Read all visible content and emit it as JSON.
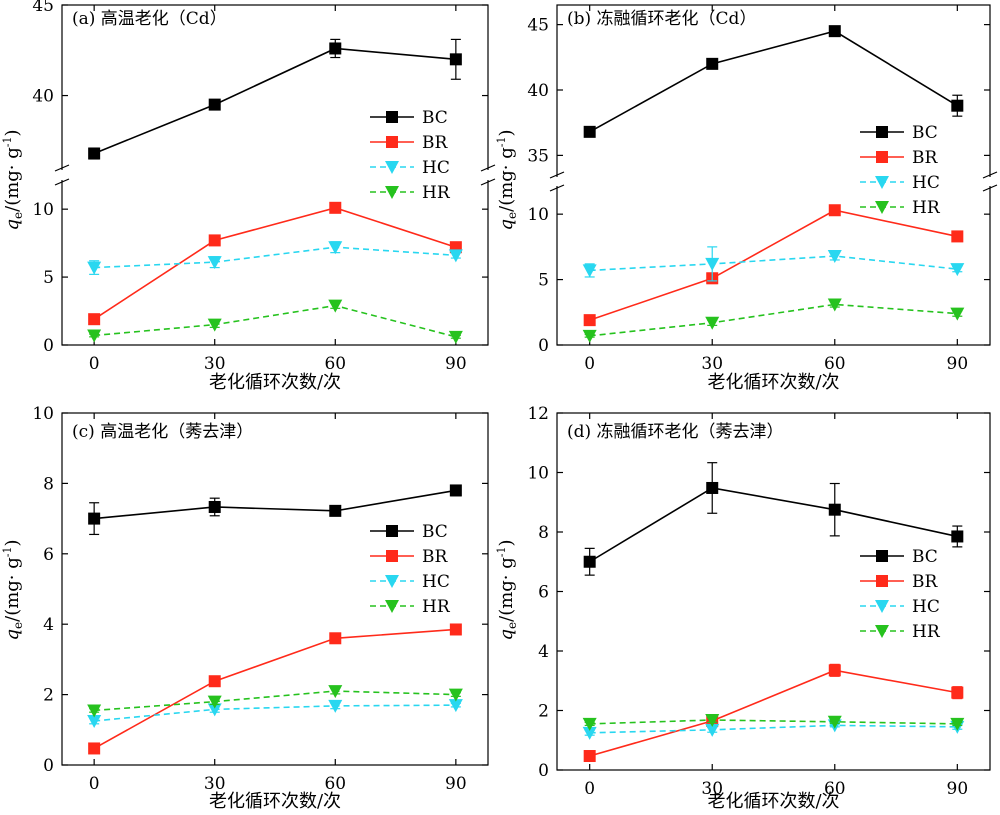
{
  "figure": {
    "x_label": "老化循环次数/次",
    "y_label_main": "q",
    "y_label_sub": "e",
    "y_label_rest": "/(mg· g",
    "y_label_sup": "-1",
    "y_label_end": ")"
  },
  "colors": {
    "BC": "#000000",
    "BR": "#ff2a1a",
    "HC": "#29d7f0",
    "HR": "#26c21e"
  },
  "chart_data": [
    {
      "type": "line",
      "title": "(a) 高温老化（Cd）",
      "x": [
        0,
        30,
        60,
        90
      ],
      "xlim": [
        -8,
        98
      ],
      "broken_y": true,
      "ylim_lower": [
        0,
        12
      ],
      "ylim_upper": [
        36,
        45
      ],
      "yticks_lower": [
        0,
        5,
        10
      ],
      "yticks_upper": [
        40,
        45
      ],
      "legend": "right",
      "series": [
        {
          "name": "BC",
          "values": [
            36.8,
            39.5,
            42.6,
            42.0
          ],
          "errors": [
            0.3,
            0.2,
            0.5,
            1.1
          ],
          "marker": "square",
          "dash": false
        },
        {
          "name": "BR",
          "values": [
            1.9,
            7.7,
            10.1,
            7.2
          ],
          "errors": [
            0.2,
            0.2,
            0.2,
            0.2
          ],
          "marker": "square",
          "dash": false
        },
        {
          "name": "HC",
          "values": [
            5.7,
            6.1,
            7.2,
            6.6
          ],
          "errors": [
            0.5,
            0.4,
            0.4,
            0.2
          ],
          "marker": "tri",
          "dash": true
        },
        {
          "name": "HR",
          "values": [
            0.7,
            1.5,
            2.9,
            0.6
          ],
          "errors": [
            0.1,
            0.2,
            0.2,
            0.1
          ],
          "marker": "tri",
          "dash": true
        }
      ]
    },
    {
      "type": "line",
      "title": "(b) 冻融循环老化（Cd）",
      "x": [
        0,
        30,
        60,
        90
      ],
      "xlim": [
        -8,
        98
      ],
      "broken_y": true,
      "ylim_lower": [
        0,
        12
      ],
      "ylim_upper": [
        33.5,
        46.5
      ],
      "yticks_lower": [
        0,
        5,
        10
      ],
      "yticks_upper": [
        35,
        40,
        45
      ],
      "legend": "right",
      "series": [
        {
          "name": "BC",
          "values": [
            36.8,
            42.0,
            44.5,
            38.8
          ],
          "errors": [
            0.2,
            0.3,
            0.2,
            0.8
          ],
          "marker": "square",
          "dash": false
        },
        {
          "name": "BR",
          "values": [
            1.9,
            5.1,
            10.3,
            8.3
          ],
          "errors": [
            0.2,
            0.4,
            0.2,
            0.2
          ],
          "marker": "square",
          "dash": false
        },
        {
          "name": "HC",
          "values": [
            5.7,
            6.2,
            6.8,
            5.8
          ],
          "errors": [
            0.5,
            1.3,
            0.3,
            0.2
          ],
          "marker": "tri",
          "dash": true
        },
        {
          "name": "HR",
          "values": [
            0.7,
            1.7,
            3.1,
            2.4
          ],
          "errors": [
            0.1,
            0.2,
            0.2,
            0.2
          ],
          "marker": "tri",
          "dash": true
        }
      ]
    },
    {
      "type": "line",
      "title": "(c) 高温老化（莠去津）",
      "x": [
        0,
        30,
        60,
        90
      ],
      "xlim": [
        -8,
        98
      ],
      "broken_y": false,
      "ylim": [
        0,
        10
      ],
      "yticks": [
        0,
        2,
        4,
        6,
        8,
        10
      ],
      "legend": "right",
      "series": [
        {
          "name": "BC",
          "values": [
            7.0,
            7.33,
            7.22,
            7.8
          ],
          "errors": [
            0.45,
            0.25,
            0.1,
            0.15
          ],
          "marker": "square",
          "dash": false
        },
        {
          "name": "BR",
          "values": [
            0.47,
            2.38,
            3.6,
            3.85
          ],
          "errors": [
            0.05,
            0.08,
            0.08,
            0.08
          ],
          "marker": "square",
          "dash": false
        },
        {
          "name": "HC",
          "values": [
            1.25,
            1.58,
            1.68,
            1.7
          ],
          "errors": [
            0.08,
            0.08,
            0.08,
            0.05
          ],
          "marker": "tri",
          "dash": true
        },
        {
          "name": "HR",
          "values": [
            1.55,
            1.8,
            2.1,
            2.0
          ],
          "errors": [
            0.05,
            0.08,
            0.08,
            0.05
          ],
          "marker": "tri",
          "dash": true
        }
      ]
    },
    {
      "type": "line",
      "title": "(d) 冻融循环老化（莠去津）",
      "x": [
        0,
        30,
        60,
        90
      ],
      "xlim": [
        -8,
        98
      ],
      "broken_y": false,
      "ylim": [
        0,
        12
      ],
      "yticks": [
        0,
        2,
        4,
        6,
        8,
        10,
        12
      ],
      "legend": "right",
      "series": [
        {
          "name": "BC",
          "values": [
            7.0,
            9.48,
            8.75,
            7.85
          ],
          "errors": [
            0.45,
            0.85,
            0.88,
            0.35
          ],
          "marker": "square",
          "dash": false
        },
        {
          "name": "BR",
          "values": [
            0.47,
            1.65,
            3.35,
            2.6
          ],
          "errors": [
            0.05,
            0.1,
            0.2,
            0.2
          ],
          "marker": "square",
          "dash": false
        },
        {
          "name": "HC",
          "values": [
            1.25,
            1.35,
            1.5,
            1.45
          ],
          "errors": [
            0.08,
            0.08,
            0.05,
            0.08
          ],
          "marker": "tri",
          "dash": true
        },
        {
          "name": "HR",
          "values": [
            1.55,
            1.68,
            1.62,
            1.55
          ],
          "errors": [
            0.05,
            0.08,
            0.05,
            0.05
          ],
          "marker": "tri",
          "dash": true
        }
      ]
    }
  ]
}
